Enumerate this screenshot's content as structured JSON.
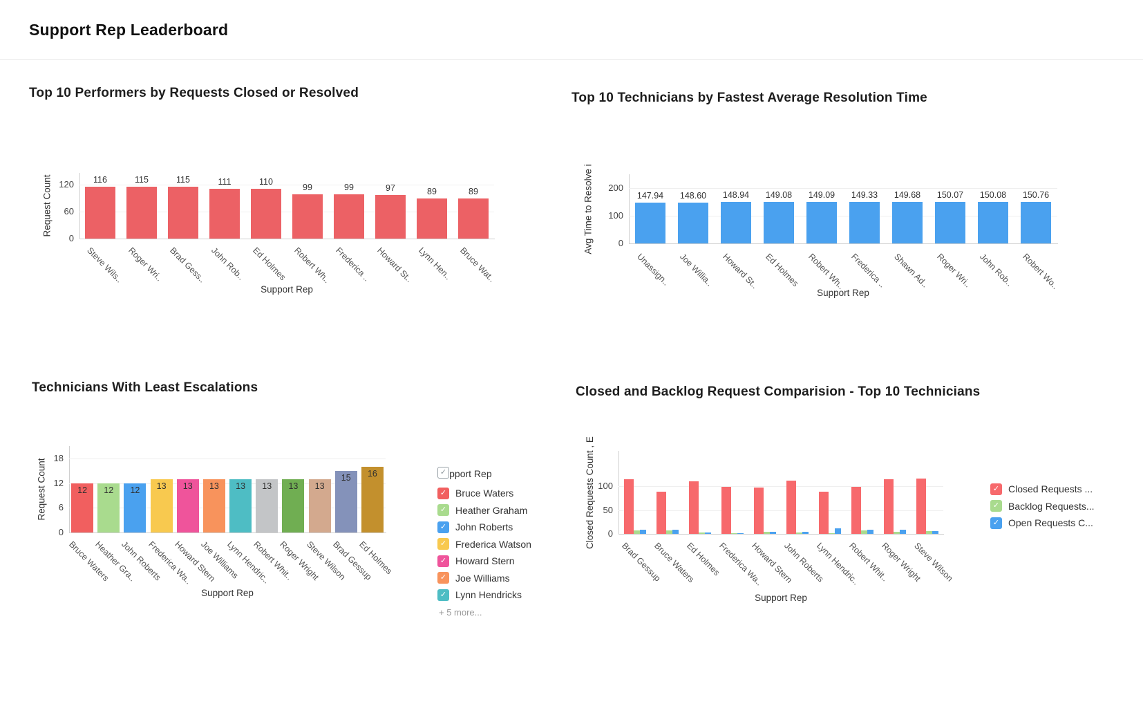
{
  "page": {
    "title": "Support Rep Leaderboard"
  },
  "chart_data": [
    {
      "type": "bar",
      "title": "Top 10 Performers by Requests Closed or Resolved",
      "xlabel": "Support Rep",
      "ylabel": "Request Count",
      "categories": [
        "Steve Wils..",
        "Roger Wri..",
        "Brad Gess..",
        "John Rob..",
        "Ed Holmes",
        "Robert Wh..",
        "Frederica ..",
        "Howard St..",
        "Lynn Hen..",
        "Bruce Wat.."
      ],
      "values": [
        116,
        115,
        115,
        111,
        110,
        99,
        99,
        97,
        89,
        89
      ],
      "value_labels": [
        "116",
        "115",
        "115",
        "111",
        "110",
        "99",
        "99",
        "97",
        "89",
        "89"
      ],
      "yticks": [
        0,
        60,
        120
      ],
      "ylim": [
        0,
        146
      ],
      "bar_color": "#ec6165",
      "grid": true,
      "legend_position": "none"
    },
    {
      "type": "bar",
      "title": "Top 10 Technicians by Fastest Average Resolution Time",
      "xlabel": "Support Rep",
      "ylabel": "Avg Time to Resolve i",
      "categories": [
        "Unassign..",
        "Joe Willia..",
        "Howard St..",
        "Ed Holmes",
        "Robert Wh..",
        "Frederica ..",
        "Shawn Ad..",
        "Roger Wri..",
        "John Rob..",
        "Robert Wo.."
      ],
      "values": [
        147.94,
        148.6,
        148.94,
        149.08,
        149.09,
        149.33,
        149.68,
        150.07,
        150.08,
        150.76
      ],
      "value_labels": [
        "147.94",
        "148.60",
        "148.94",
        "149.08",
        "149.09",
        "149.33",
        "149.68",
        "150.07",
        "150.08",
        "150.76"
      ],
      "yticks": [
        0,
        100,
        200
      ],
      "ylim": [
        0,
        250
      ],
      "bar_color": "#4aa1ef",
      "grid": true,
      "legend_position": "none"
    },
    {
      "type": "bar",
      "title": "Technicians With Least Escalations",
      "xlabel": "Support Rep",
      "ylabel": "Request Count",
      "categories": [
        "Bruce Waters",
        "Heather Gra..",
        "John Roberts",
        "Frederica Wa..",
        "Howard Stern",
        "Joe Williams",
        "Lynn Hendric..",
        "Robert Whit..",
        "Roger Wright",
        "Steve Wilson",
        "Brad Gessup",
        "Ed Holmes"
      ],
      "values": [
        12,
        12,
        12,
        13,
        13,
        13,
        13,
        13,
        13,
        13,
        15,
        16
      ],
      "value_labels": [
        "12",
        "12",
        "12",
        "13",
        "13",
        "13",
        "13",
        "13",
        "13",
        "13",
        "15",
        "16"
      ],
      "bar_colors": [
        "#f15f5f",
        "#a9db8e",
        "#4aa1ef",
        "#f8c94f",
        "#ef549b",
        "#f8935c",
        "#4ebdc4",
        "#c3c5c7",
        "#70ae52",
        "#d3a98e",
        "#8492ba",
        "#c3902d"
      ],
      "yticks": [
        0,
        6,
        12,
        18
      ],
      "ylim": [
        0,
        21
      ],
      "grid": true,
      "legend_position": "right",
      "legend": {
        "header": "Support Rep",
        "items": [
          {
            "label": "Bruce Waters",
            "color": "#f15f5f"
          },
          {
            "label": "Heather Graham",
            "color": "#a9db8e"
          },
          {
            "label": "John Roberts",
            "color": "#4aa1ef"
          },
          {
            "label": "Frederica Watson",
            "color": "#f8c94f"
          },
          {
            "label": "Howard Stern",
            "color": "#ef549b"
          },
          {
            "label": "Joe Williams",
            "color": "#f8935c"
          },
          {
            "label": "Lynn Hendricks",
            "color": "#4ebdc4"
          }
        ],
        "more": "+ 5 more..."
      }
    },
    {
      "type": "grouped-bar",
      "title": "Closed and Backlog Request Comparision - Top 10 Technicians",
      "xlabel": "Support Rep",
      "ylabel": "Closed Requests Count , E",
      "categories": [
        "Brad Gessup",
        "Bruce Waters",
        "Ed Holmes",
        "Frederica Wa..",
        "Howard Stern",
        "John Roberts",
        "Lynn Hendric..",
        "Robert Whit..",
        "Roger Wright",
        "Steve Wilson"
      ],
      "series": [
        {
          "name": "Closed Requests ...",
          "color": "#f7696c",
          "values": [
            115,
            89,
            110,
            99,
            97,
            111,
            89,
            99,
            115,
            116
          ]
        },
        {
          "name": "Backlog Requests...",
          "color": "#a9db8e",
          "values": [
            7,
            7,
            3,
            2,
            5,
            3,
            2,
            7,
            4,
            6
          ]
        },
        {
          "name": "Open Requests C...",
          "color": "#4aa1ef",
          "values": [
            8,
            9,
            3,
            2,
            4,
            4,
            11,
            8,
            9,
            6
          ]
        }
      ],
      "yticks": [
        0,
        50,
        100
      ],
      "ylim": [
        0,
        174
      ],
      "grid": true,
      "legend_position": "right",
      "legend": {
        "items": [
          {
            "label": "Closed Requests ...",
            "color": "#f7696c"
          },
          {
            "label": "Backlog Requests...",
            "color": "#a9db8e"
          },
          {
            "label": "Open Requests C...",
            "color": "#4aa1ef"
          }
        ]
      }
    }
  ]
}
